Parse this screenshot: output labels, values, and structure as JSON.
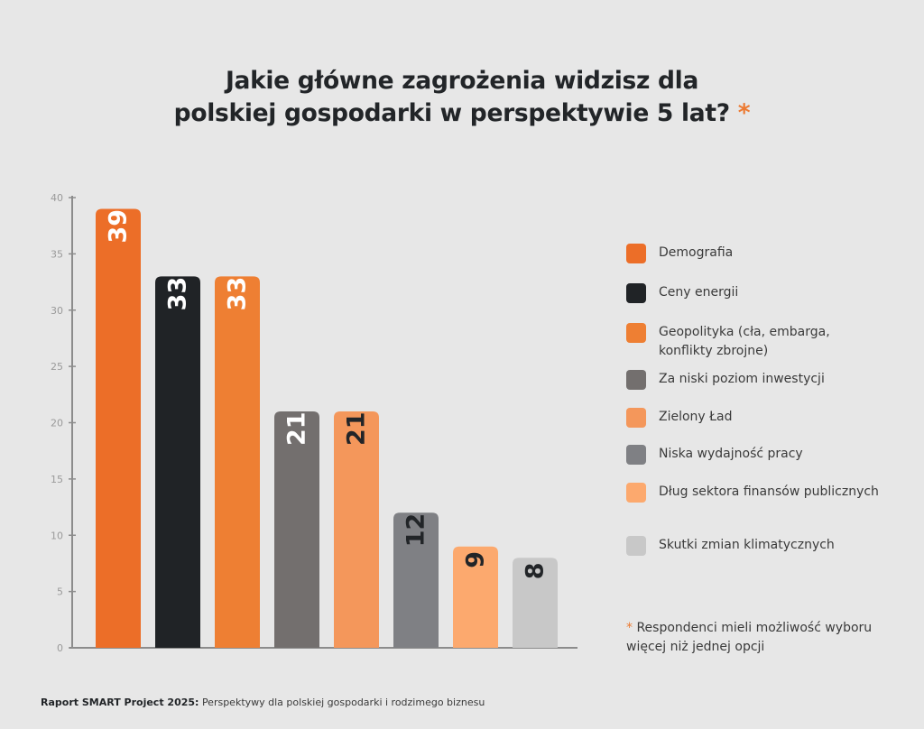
{
  "title": {
    "line1": "Jakie główne zagrożenia widzisz dla",
    "line2": "polskiej gospodarki w perspektywie 5 lat?",
    "asterisk": "*"
  },
  "chart_data": {
    "type": "bar",
    "title": "Jakie główne zagrożenia widzisz dla polskiej gospodarki w perspektywie 5 lat?",
    "xlabel": "",
    "ylabel": "",
    "ylim": [
      0,
      40
    ],
    "yticks": [
      0,
      5,
      10,
      15,
      20,
      25,
      30,
      35,
      40
    ],
    "ytick_labels": [
      "0",
      "5",
      "10",
      "15",
      "20",
      "25",
      "30",
      "35",
      "40"
    ],
    "grid": false,
    "legend_position": "right",
    "categories": [
      "Demografia",
      "Ceny energii",
      "Geopolityka (cła, embarga, konflikty zbrojne)",
      "Za niski poziom inwestycji",
      "Zielony Ład",
      "Niska wydajność pracy",
      "Dług sektora finansów publicznych",
      "Skutki zmian klimatycznych"
    ],
    "values": [
      39,
      33,
      33,
      21,
      21,
      12,
      9,
      8
    ],
    "data_labels": [
      "39",
      "33",
      "33",
      "21",
      "21",
      "12",
      "9",
      "8"
    ],
    "colors": [
      "#ec6e28",
      "#202326",
      "#ee7f33",
      "#736f6e",
      "#f4975b",
      "#7f8084",
      "#fca96e",
      "#c8c8c8"
    ],
    "label_colors": [
      "#ffffff",
      "#ffffff",
      "#ffffff",
      "#ffffff",
      "#222528",
      "#222528",
      "#222528",
      "#222528"
    ]
  },
  "legend": {
    "items": [
      {
        "label": "Demografia",
        "color": "#ec6e28"
      },
      {
        "label": "Ceny energii",
        "color": "#202326"
      },
      {
        "label": "Geopolityka (cła, embarga, konflikty zbrojne)",
        "color": "#ee7f33"
      },
      {
        "label": "Za niski poziom inwestycji",
        "color": "#736f6e"
      },
      {
        "label": "Zielony Ład",
        "color": "#f4975b"
      },
      {
        "label": "Niska wydajność pracy",
        "color": "#7f8084"
      },
      {
        "label": "Dług sektora finansów publicznych",
        "color": "#fca96e"
      },
      {
        "label": "Skutki zmian klimatycznych",
        "color": "#c8c8c8"
      }
    ]
  },
  "note": {
    "asterisk": "*",
    "text": "Respondenci mieli możliwość wyboru więcej niż jednej opcji"
  },
  "footer": {
    "bold": "Raport SMART Project 2025:",
    "text": "Perspektywy dla polskiej gospodarki i rodzimego biznesu"
  },
  "accent_color": "#ec7a32"
}
